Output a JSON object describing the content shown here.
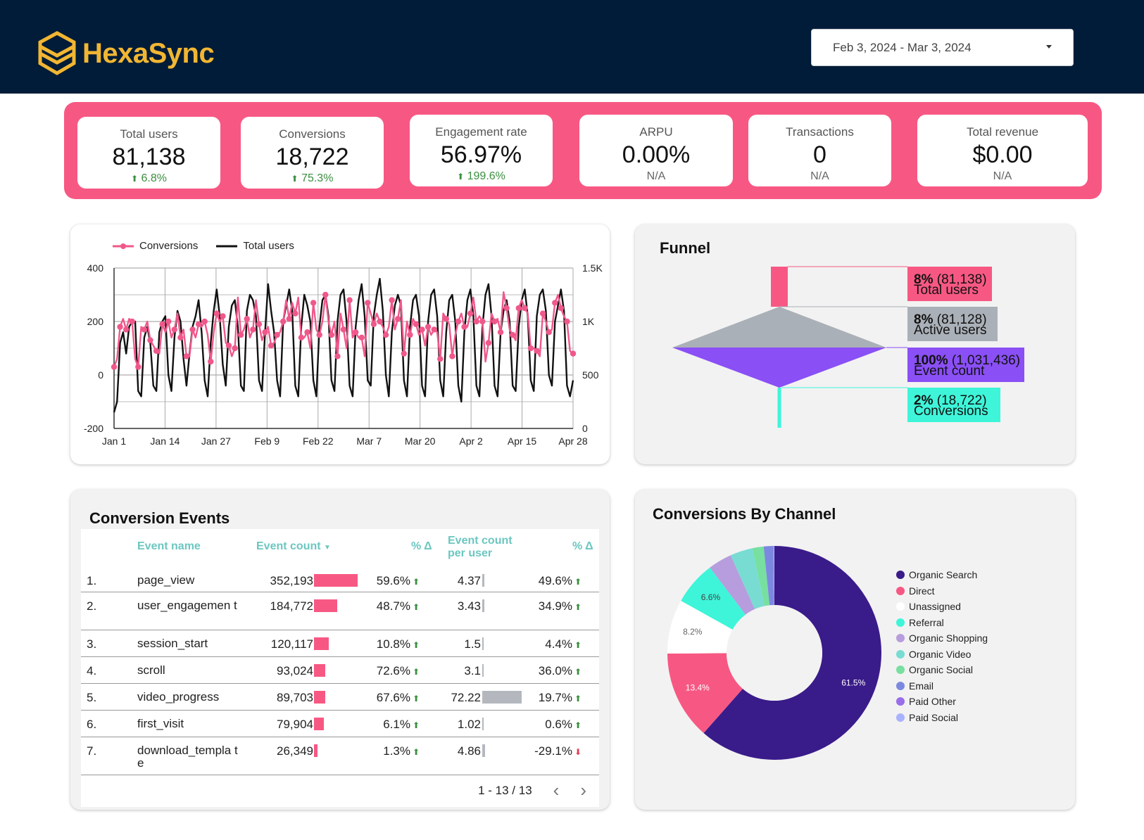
{
  "header": {
    "brand": "HexaSync",
    "date_range": "Feb 3, 2024 - Mar 3, 2024",
    "brand_color": "#f2b632",
    "bg_color": "#001c38"
  },
  "kpis": [
    {
      "label": "Total users",
      "value": "81,138",
      "delta": "6.8%",
      "trend": "up"
    },
    {
      "label": "Conversions",
      "value": "18,722",
      "delta": "75.3%",
      "trend": "up"
    },
    {
      "label": "Engagement rate",
      "value": "56.97%",
      "delta": "199.6%",
      "trend": "up"
    },
    {
      "label": "ARPU",
      "value": "0.00%",
      "delta": "N/A",
      "trend": "none"
    },
    {
      "label": "Transactions",
      "value": "0",
      "delta": "N/A",
      "trend": "none"
    },
    {
      "label": "Total revenue",
      "value": "$0.00",
      "delta": "N/A",
      "trend": "none"
    }
  ],
  "line_chart": {
    "legend": [
      "Conversions",
      "Total users"
    ]
  },
  "funnel": {
    "title": "Funnel",
    "stages": [
      {
        "pct": "8%",
        "count": "(81,138)",
        "name": "Total users",
        "color": "#f75883"
      },
      {
        "pct": "8%",
        "count": "(81,128)",
        "name": "Active users",
        "color": "#aab0b7"
      },
      {
        "pct": "100%",
        "count": "(1,031,436)",
        "name": "Event count",
        "color": "#8a4ff5"
      },
      {
        "pct": "2%",
        "count": "(18,722)",
        "name": "Conversions",
        "color": "#3ef5d9"
      }
    ]
  },
  "events": {
    "title": "Conversion Events",
    "headers": {
      "name": "Event name",
      "count": "Event count",
      "pct1": "% Δ",
      "per_user": "Event count per user",
      "pct2": "% Δ"
    },
    "rows": [
      {
        "idx": "1.",
        "name": "page_view",
        "count": "352,193",
        "count_val": 352193,
        "pct1": "59.6%",
        "t1": "up",
        "per_user": "4.37",
        "pu_val": 4.37,
        "pct2": "49.6%",
        "t2": "up"
      },
      {
        "idx": "2.",
        "name": "user_engagemen t",
        "count": "184,772",
        "count_val": 184772,
        "pct1": "48.7%",
        "t1": "up",
        "per_user": "3.43",
        "pu_val": 3.43,
        "pct2": "34.9%",
        "t2": "up"
      },
      {
        "idx": "3.",
        "name": "session_start",
        "count": "120,117",
        "count_val": 120117,
        "pct1": "10.8%",
        "t1": "up",
        "per_user": "1.5",
        "pu_val": 1.5,
        "pct2": "4.4%",
        "t2": "up"
      },
      {
        "idx": "4.",
        "name": "scroll",
        "count": "93,024",
        "count_val": 93024,
        "pct1": "72.6%",
        "t1": "up",
        "per_user": "3.1",
        "pu_val": 3.1,
        "pct2": "36.0%",
        "t2": "up"
      },
      {
        "idx": "5.",
        "name": "video_progress",
        "count": "89,703",
        "count_val": 89703,
        "pct1": "67.6%",
        "t1": "up",
        "per_user": "72.22",
        "pu_val": 72.22,
        "pct2": "19.7%",
        "t2": "up"
      },
      {
        "idx": "6.",
        "name": "first_visit",
        "count": "79,904",
        "count_val": 79904,
        "pct1": "6.1%",
        "t1": "up",
        "per_user": "1.02",
        "pu_val": 1.02,
        "pct2": "0.6%",
        "t2": "up"
      },
      {
        "idx": "7.",
        "name": "download_templa te",
        "count": "26,349",
        "count_val": 26349,
        "pct1": "1.3%",
        "t1": "up",
        "per_user": "4.86",
        "pu_val": 4.86,
        "pct2": "-29.1%",
        "t2": "down"
      }
    ],
    "pager": "1 - 13 / 13"
  },
  "channels": {
    "title": "Conversions By Channel"
  },
  "chart_data": [
    {
      "type": "line",
      "title": "",
      "x_ticks": [
        "Jan 1",
        "Jan 14",
        "Jan 27",
        "Feb 9",
        "Feb 22",
        "Mar 7",
        "Mar 20",
        "Apr 2",
        "Apr 15",
        "Apr 28"
      ],
      "y_left_ticks": [
        "400",
        "200",
        "0",
        "-200"
      ],
      "y_right_ticks": [
        "1.5K",
        "1K",
        "500",
        "0"
      ],
      "ylim_left": [
        -200,
        400
      ],
      "ylim_right": [
        0,
        1500
      ],
      "grid": true,
      "legend_position": "top-left",
      "series": [
        {
          "name": "Conversions",
          "axis": "left",
          "color": "#f0588a",
          "values": [
            30,
            60,
            180,
            210,
            170,
            210,
            200,
            60,
            30,
            180,
            170,
            200,
            130,
            110,
            90,
            80,
            190,
            160,
            200,
            140,
            170,
            230,
            140,
            170,
            70,
            70,
            170,
            140,
            190,
            180,
            200,
            150,
            50,
            160,
            230,
            200,
            220,
            120,
            110,
            70,
            100,
            290,
            150,
            170,
            210,
            140,
            170,
            280,
            190,
            130,
            160,
            180,
            110,
            120,
            150,
            160,
            200,
            280,
            210,
            270,
            230,
            290,
            140,
            140,
            160,
            100,
            270,
            170,
            150,
            200,
            300,
            200,
            150,
            200,
            70,
            230,
            170,
            100,
            280,
            140,
            160,
            140,
            140,
            70,
            270,
            230,
            190,
            230,
            200,
            180,
            150,
            180,
            280,
            170,
            210,
            280,
            80,
            200,
            150,
            210,
            190,
            150,
            170,
            110,
            180,
            150,
            170,
            160,
            60,
            230,
            210,
            190,
            70,
            150,
            200,
            230,
            180,
            180,
            230,
            290,
            200,
            220,
            200,
            50,
            120,
            230,
            200,
            210,
            160,
            310,
            250,
            170,
            150,
            130,
            250,
            280,
            250,
            230,
            100,
            100,
            90,
            70,
            230,
            200,
            160,
            170,
            270,
            300,
            250,
            220,
            200,
            90,
            80
          ]
        },
        {
          "name": "Total users",
          "axis": "right",
          "color": "#111111",
          "values": [
            150,
            250,
            800,
            900,
            700,
            950,
            1000,
            1000,
            350,
            300,
            850,
            950,
            800,
            400,
            350,
            900,
            1000,
            1050,
            500,
            350,
            850,
            1100,
            1000,
            650,
            400,
            700,
            950,
            1050,
            1200,
            900,
            450,
            300,
            800,
            1100,
            1300,
            1050,
            600,
            400,
            950,
            1150,
            1200,
            950,
            400,
            350,
            1100,
            1250,
            1200,
            1050,
            450,
            350,
            900,
            1350,
            1100,
            900,
            450,
            300,
            1000,
            1150,
            1300,
            1100,
            400,
            300,
            950,
            1250,
            1150,
            1000,
            450,
            300,
            950,
            1200,
            1250,
            1050,
            450,
            350,
            1000,
            1250,
            1300,
            1000,
            400,
            300,
            950,
            1200,
            1350,
            1050,
            450,
            400,
            1050,
            1250,
            1400,
            1100,
            500,
            300,
            900,
            1150,
            1250,
            1150,
            450,
            300,
            950,
            1200,
            1250,
            1050,
            400,
            300,
            1000,
            1250,
            1300,
            1050,
            450,
            300,
            900,
            1200,
            1250,
            1000,
            400,
            250,
            900,
            1200,
            1300,
            1050,
            400,
            300,
            950,
            1250,
            1350,
            1050,
            400,
            300,
            900,
            1100,
            1200,
            1000,
            400,
            350,
            950,
            1200,
            1300,
            1050,
            450,
            350,
            1050,
            1250,
            1300,
            1100,
            500,
            400,
            1000,
            1150,
            1300,
            1100,
            400,
            300,
            450
          ]
        }
      ]
    },
    {
      "type": "pie",
      "title": "Conversions By Channel",
      "legend_position": "right",
      "categories": [
        "Organic Search",
        "Direct",
        "Unassigned",
        "Referral",
        "Organic Shopping",
        "Organic Video",
        "Organic Social",
        "Email",
        "Paid Other",
        "Paid Social"
      ],
      "values": [
        61.5,
        13.4,
        8.2,
        6.6,
        3.6,
        3.4,
        1.7,
        1.4,
        0.1,
        0.1
      ],
      "slice_labels": [
        "61.5%",
        "13.4%",
        "8.2%",
        "6.6%",
        "",
        "",
        "",
        "",
        "",
        ""
      ],
      "colors": [
        "#3a1b8a",
        "#f75883",
        "#ffffff",
        "#3ef5d9",
        "#b79ddd",
        "#78dcd3",
        "#77dfa0",
        "#7c88e0",
        "#9a6ee8",
        "#a9b2ff"
      ],
      "hole": 0.45
    }
  ]
}
